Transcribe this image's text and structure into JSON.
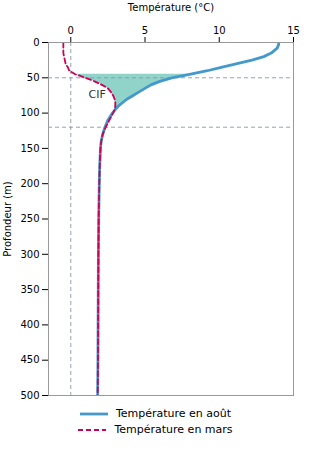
{
  "chart_data": {
    "type": "line",
    "xlabel": "Température (°C)",
    "ylabel": "Profondeur (m)",
    "xlim": [
      -1.5,
      15
    ],
    "ylim": [
      0,
      500
    ],
    "xticks": [
      0,
      5,
      10,
      15
    ],
    "yticks": [
      0,
      50,
      100,
      150,
      200,
      250,
      300,
      350,
      400,
      450,
      500
    ],
    "y_reversed": true,
    "legend": "bottom",
    "series": [
      {
        "name": "Température en août",
        "color": "#4499cc",
        "line_style": "solid",
        "x": [
          14.0,
          14.0,
          13.9,
          13.5,
          13.0,
          12.2,
          11.2,
          10.2,
          9.2,
          8.0,
          6.8,
          6.0,
          5.4,
          5.0,
          4.6,
          4.2,
          3.8,
          3.5,
          3.2,
          3.0,
          2.8,
          2.5,
          2.3,
          2.15,
          2.05,
          2.0,
          1.95,
          1.92,
          1.9,
          1.88,
          1.87,
          1.86,
          1.85,
          1.84,
          1.83,
          1.82,
          1.81
        ],
        "y": [
          0,
          3,
          8,
          15,
          20,
          25,
          30,
          35,
          40,
          45,
          50,
          55,
          60,
          65,
          70,
          75,
          80,
          85,
          90,
          95,
          100,
          110,
          120,
          130,
          140,
          150,
          175,
          200,
          225,
          250,
          275,
          300,
          350,
          400,
          450,
          480,
          500
        ]
      },
      {
        "name": "Température en mars",
        "color": "#cc0055",
        "line_style": "dashed",
        "x": [
          -0.5,
          -0.5,
          -0.5,
          -0.5,
          -0.45,
          -0.4,
          -0.35,
          -0.2,
          -0.1,
          0.3,
          1.0,
          1.6,
          2.1,
          2.5,
          2.7,
          2.85,
          2.95,
          3.0,
          3.0,
          2.95,
          2.85,
          2.6,
          2.35,
          2.15,
          2.05,
          2.0,
          1.95,
          1.92,
          1.9,
          1.88,
          1.87,
          1.86,
          1.85,
          1.84,
          1.83,
          1.82,
          1.81
        ],
        "y": [
          0,
          3,
          8,
          15,
          20,
          25,
          30,
          35,
          40,
          45,
          50,
          55,
          60,
          65,
          70,
          75,
          80,
          85,
          90,
          95,
          100,
          110,
          120,
          130,
          140,
          150,
          175,
          200,
          225,
          250,
          275,
          300,
          350,
          400,
          450,
          480,
          500
        ]
      }
    ],
    "fill": {
      "color": "#55bbaa",
      "from": 45,
      "to": 105
    },
    "hlines": [
      50,
      120
    ],
    "vlines": [
      0
    ],
    "annotations": [
      {
        "text": "CIF",
        "x": 1.2,
        "y": 78
      }
    ]
  }
}
